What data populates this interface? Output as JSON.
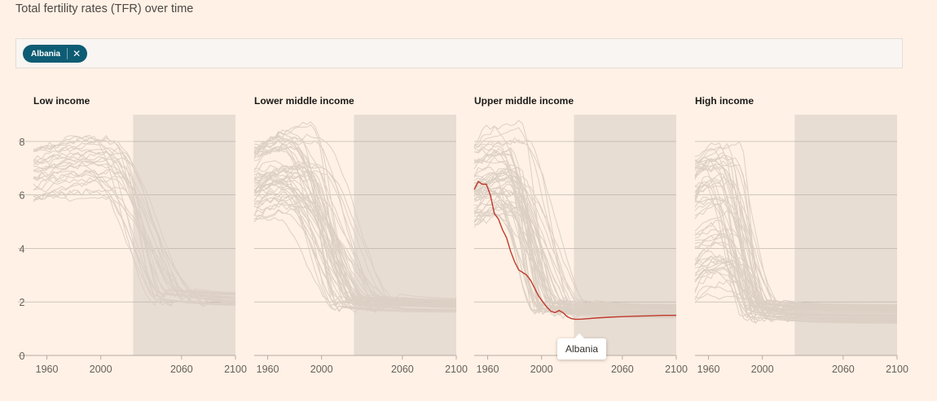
{
  "title": "Total fertility rates (TFR) over time",
  "filter": {
    "chip_label": "Albania",
    "remove_icon": "close-icon"
  },
  "tooltip": {
    "label": "Albania"
  },
  "colors": {
    "background": "#fff1e5",
    "projection_band": "#e8ddd3",
    "grey_line": "#dcd0c5",
    "highlight": "#c0392b",
    "grid": "#b5aca4"
  },
  "chart_data": {
    "type": "line",
    "title": "Total fertility rates (TFR) over time",
    "xlim": [
      1950,
      2100
    ],
    "ylim": [
      0,
      9
    ],
    "yticks": [
      0,
      2,
      4,
      6,
      8
    ],
    "xticks": [
      1960,
      2000,
      2060,
      2100
    ],
    "projection_start": 2024,
    "panels": [
      {
        "title": "Low income",
        "start_min": 5.8,
        "start_max": 7.8,
        "end_min": 1.8,
        "end_max": 2.3,
        "decline_start": [
          1985,
          2020
        ],
        "decline_end": [
          2040,
          2080
        ],
        "count": 26
      },
      {
        "title": "Lower middle income",
        "start_min": 4.8,
        "start_max": 7.9,
        "end_min": 1.6,
        "end_max": 2.1,
        "decline_start": [
          1960,
          2000
        ],
        "decline_end": [
          2010,
          2060
        ],
        "count": 50
      },
      {
        "title": "Upper middle income",
        "start_min": 4.8,
        "start_max": 8.0,
        "end_min": 1.4,
        "end_max": 1.9,
        "decline_start": [
          1960,
          1990
        ],
        "decline_end": [
          1995,
          2040
        ],
        "count": 50
      },
      {
        "title": "High income",
        "start_min": 2.0,
        "start_max": 7.5,
        "end_min": 1.2,
        "end_max": 1.9,
        "decline_start": [
          1955,
          1985
        ],
        "decline_end": [
          1985,
          2020
        ],
        "count": 55
      }
    ],
    "highlight": {
      "name": "Albania",
      "panel": "Upper middle income",
      "points": [
        [
          1950,
          6.2
        ],
        [
          1953,
          6.5
        ],
        [
          1956,
          6.4
        ],
        [
          1959,
          6.4
        ],
        [
          1962,
          6.0
        ],
        [
          1965,
          5.3
        ],
        [
          1968,
          5.1
        ],
        [
          1971,
          4.7
        ],
        [
          1974,
          4.4
        ],
        [
          1977,
          3.9
        ],
        [
          1980,
          3.5
        ],
        [
          1983,
          3.2
        ],
        [
          1986,
          3.1
        ],
        [
          1989,
          3.0
        ],
        [
          1992,
          2.8
        ],
        [
          1995,
          2.5
        ],
        [
          1998,
          2.2
        ],
        [
          2001,
          2.0
        ],
        [
          2004,
          1.8
        ],
        [
          2007,
          1.65
        ],
        [
          2010,
          1.6
        ],
        [
          2013,
          1.68
        ],
        [
          2016,
          1.6
        ],
        [
          2019,
          1.45
        ],
        [
          2022,
          1.38
        ],
        [
          2025,
          1.35
        ],
        [
          2030,
          1.36
        ],
        [
          2040,
          1.4
        ],
        [
          2050,
          1.43
        ],
        [
          2060,
          1.45
        ],
        [
          2070,
          1.47
        ],
        [
          2080,
          1.48
        ],
        [
          2090,
          1.5
        ],
        [
          2100,
          1.5
        ]
      ]
    }
  }
}
